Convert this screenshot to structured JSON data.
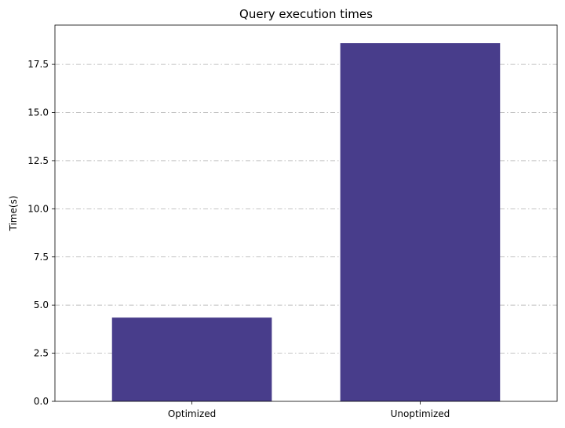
{
  "chart_data": {
    "type": "bar",
    "title": "Query execution times",
    "xlabel": "",
    "ylabel": "Time(s)",
    "categories": [
      "Optimized",
      "Unoptimized"
    ],
    "values": [
      4.35,
      18.6
    ],
    "ylim": [
      0,
      19.54
    ],
    "yticks": [
      0.0,
      2.5,
      5.0,
      7.5,
      10.0,
      12.5,
      15.0,
      17.5
    ],
    "ytick_labels": [
      "0.0",
      "2.5",
      "5.0",
      "7.5",
      "10.0",
      "12.5",
      "15.0",
      "17.5"
    ],
    "grid": "y",
    "grid_style": "dashdot",
    "bar_color": "#483d8b",
    "legend": "none"
  }
}
